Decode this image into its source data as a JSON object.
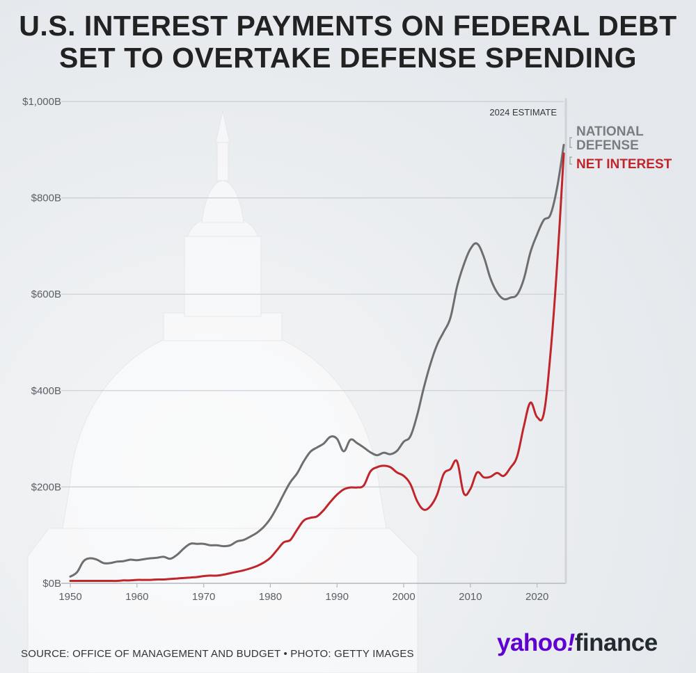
{
  "title": {
    "line1": "U.S. INTEREST PAYMENTS ON FEDERAL DEBT",
    "line2": "SET TO OVERTAKE DEFENSE SPENDING"
  },
  "source": "SOURCE: OFFICE OF MANAGEMENT AND BUDGET • PHOTO: GETTY IMAGES",
  "brand": {
    "part1": "yahoo",
    "bang": "!",
    "part2": "finance"
  },
  "chart_data": {
    "type": "line",
    "annotation": "2024 ESTIMATE",
    "xlim": [
      1950,
      2024
    ],
    "ylim": [
      0,
      1000
    ],
    "x_ticks": [
      1950,
      1960,
      1970,
      1980,
      1990,
      2000,
      2010,
      2020
    ],
    "y_ticks": [
      {
        "value": 0,
        "label": "$0B"
      },
      {
        "value": 200,
        "label": "$200B"
      },
      {
        "value": 400,
        "label": "$400B"
      },
      {
        "value": 600,
        "label": "$600B"
      },
      {
        "value": 800,
        "label": "$800B"
      },
      {
        "value": 1000,
        "label": "$1,000B"
      }
    ],
    "grid": true,
    "series": [
      {
        "name": "NATIONAL DEFENSE",
        "color": "#6e6e6e",
        "x": [
          1950,
          1951,
          1952,
          1953,
          1954,
          1955,
          1956,
          1957,
          1958,
          1959,
          1960,
          1961,
          1962,
          1963,
          1964,
          1965,
          1966,
          1967,
          1968,
          1969,
          1970,
          1971,
          1972,
          1973,
          1974,
          1975,
          1976,
          1977,
          1978,
          1979,
          1980,
          1981,
          1982,
          1983,
          1984,
          1985,
          1986,
          1987,
          1988,
          1989,
          1990,
          1991,
          1992,
          1993,
          1994,
          1995,
          1996,
          1997,
          1998,
          1999,
          2000,
          2001,
          2002,
          2003,
          2004,
          2005,
          2006,
          2007,
          2008,
          2009,
          2010,
          2011,
          2012,
          2013,
          2014,
          2015,
          2016,
          2017,
          2018,
          2019,
          2020,
          2021,
          2022,
          2023,
          2024
        ],
        "values": [
          14,
          23,
          46,
          52,
          49,
          42,
          42,
          45,
          46,
          49,
          48,
          50,
          52,
          53,
          55,
          51,
          59,
          72,
          82,
          82,
          82,
          79,
          79,
          77,
          79,
          87,
          90,
          97,
          105,
          117,
          134,
          158,
          185,
          210,
          228,
          253,
          273,
          282,
          290,
          304,
          300,
          274,
          298,
          291,
          282,
          272,
          266,
          271,
          268,
          275,
          294,
          305,
          348,
          405,
          455,
          495,
          522,
          551,
          616,
          661,
          694,
          705,
          678,
          633,
          604,
          590,
          593,
          599,
          631,
          687,
          724,
          754,
          765,
          821,
          910
        ]
      },
      {
        "name": "NET INTEREST",
        "color": "#c0252b",
        "x": [
          1950,
          1951,
          1952,
          1953,
          1954,
          1955,
          1956,
          1957,
          1958,
          1959,
          1960,
          1961,
          1962,
          1963,
          1964,
          1965,
          1966,
          1967,
          1968,
          1969,
          1970,
          1971,
          1972,
          1973,
          1974,
          1975,
          1976,
          1977,
          1978,
          1979,
          1980,
          1981,
          1982,
          1983,
          1984,
          1985,
          1986,
          1987,
          1988,
          1989,
          1990,
          1991,
          1992,
          1993,
          1994,
          1995,
          1996,
          1997,
          1998,
          1999,
          2000,
          2001,
          2002,
          2003,
          2004,
          2005,
          2006,
          2007,
          2008,
          2009,
          2010,
          2011,
          2012,
          2013,
          2014,
          2015,
          2016,
          2017,
          2018,
          2019,
          2020,
          2021,
          2022,
          2023,
          2024
        ],
        "values": [
          5,
          5,
          5,
          5,
          5,
          5,
          5,
          5,
          6,
          6,
          7,
          7,
          7,
          8,
          8,
          9,
          10,
          11,
          12,
          13,
          15,
          16,
          16,
          18,
          21,
          24,
          27,
          31,
          36,
          43,
          53,
          69,
          85,
          90,
          111,
          130,
          136,
          139,
          152,
          169,
          184,
          195,
          199,
          199,
          203,
          232,
          241,
          244,
          241,
          230,
          223,
          206,
          171,
          153,
          160,
          184,
          227,
          237,
          253,
          187,
          196,
          230,
          220,
          221,
          229,
          223,
          240,
          263,
          325,
          375,
          345,
          352,
          475,
          660,
          892
        ]
      }
    ]
  }
}
